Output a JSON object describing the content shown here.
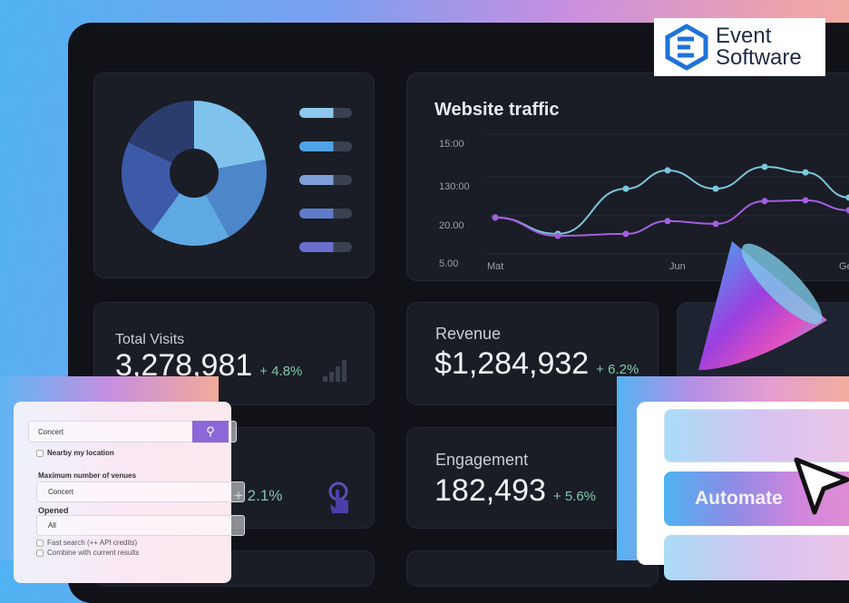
{
  "logo": {
    "line1": "Event",
    "line2": "Software",
    "color": "#1e73d8"
  },
  "donut": {
    "slices": [
      22,
      20,
      18,
      22,
      18
    ],
    "colors": [
      "#7fc3ec",
      "#4d86c9",
      "#5fa9e3",
      "#3d5aa8",
      "#2a3d6e"
    ],
    "legend_colors": [
      "#8fc8ec",
      "#4ea3e6",
      "#7d9fd6",
      "#5f7cc9",
      "#6a6fcf"
    ]
  },
  "traffic": {
    "title": "Website traffic"
  },
  "chart_data": {
    "type": "line",
    "title": "Website traffic",
    "y_tick_labels": [
      "15:00",
      "130:00",
      "20.00",
      "5.00"
    ],
    "x_tick_labels": [
      "Mat",
      "Jun",
      "Ge"
    ],
    "grid": true,
    "series": [
      {
        "color": "#7cc6dc",
        "values": [
          1.14,
          0.73,
          1.86,
          2.32,
          1.86,
          2.41,
          2.27,
          1.64
        ]
      },
      {
        "color": "#a35ee0",
        "values": [
          1.14,
          0.68,
          0.73,
          1.05,
          0.98,
          1.55,
          1.57,
          1.32
        ]
      }
    ]
  },
  "stats": [
    {
      "label": "Total Visits",
      "value": "3,278,981",
      "change": "+ 4.8%",
      "icon": "bar-chart-icon"
    },
    {
      "label": "Revenue",
      "value": "$1,284,932",
      "change": "+ 6.2%"
    },
    {
      "label": "",
      "value": "",
      "change": "+ 2.1%",
      "icon": "tap-hand-icon"
    },
    {
      "label": "Engagement",
      "value": "182,493",
      "change": "+ 5.6%"
    }
  ],
  "form": {
    "search_value": "Concert",
    "nearby": "Nearby my location",
    "max_label": "Maximum number of venues",
    "max_value": "Concert",
    "opened_label": "Opened",
    "opened_value": "All",
    "fast": "Fast search (++ API credits)",
    "combine": "Combine with current results",
    "accent": "#8a68d8"
  },
  "automate": {
    "button": "Automate"
  }
}
